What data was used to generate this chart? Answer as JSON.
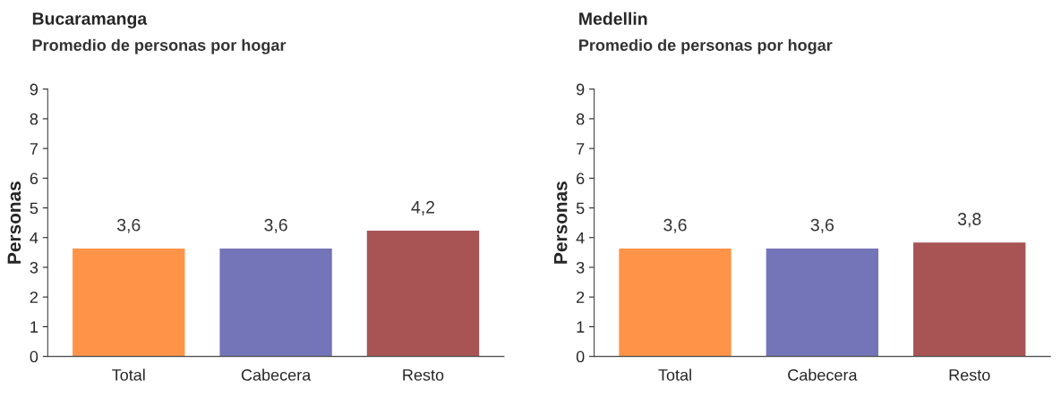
{
  "chart_data": [
    {
      "type": "bar",
      "title": "Bucaramanga",
      "subtitle": "Promedio de personas por hogar",
      "ylabel": "Personas",
      "categories": [
        "Total",
        "Cabecera",
        "Resto"
      ],
      "values": [
        3.6,
        3.6,
        4.2
      ],
      "colors": [
        "#ff9448",
        "#7474b8",
        "#a85454"
      ],
      "value_labels": [
        "3,6",
        "3,6",
        "4,2"
      ],
      "ylim": [
        0,
        9
      ],
      "yticks": [
        0,
        1,
        2,
        3,
        4,
        5,
        6,
        7,
        8,
        9
      ],
      "grid": false
    },
    {
      "type": "bar",
      "title": "Medellin",
      "subtitle": "Promedio de personas por hogar",
      "ylabel": "Personas",
      "categories": [
        "Total",
        "Cabecera",
        "Resto"
      ],
      "values": [
        3.6,
        3.6,
        3.8
      ],
      "colors": [
        "#ff9448",
        "#7474b8",
        "#a85454"
      ],
      "value_labels": [
        "3,6",
        "3,6",
        "3,8"
      ],
      "ylim": [
        0,
        9
      ],
      "yticks": [
        0,
        1,
        2,
        3,
        4,
        5,
        6,
        7,
        8,
        9
      ],
      "grid": false
    }
  ]
}
